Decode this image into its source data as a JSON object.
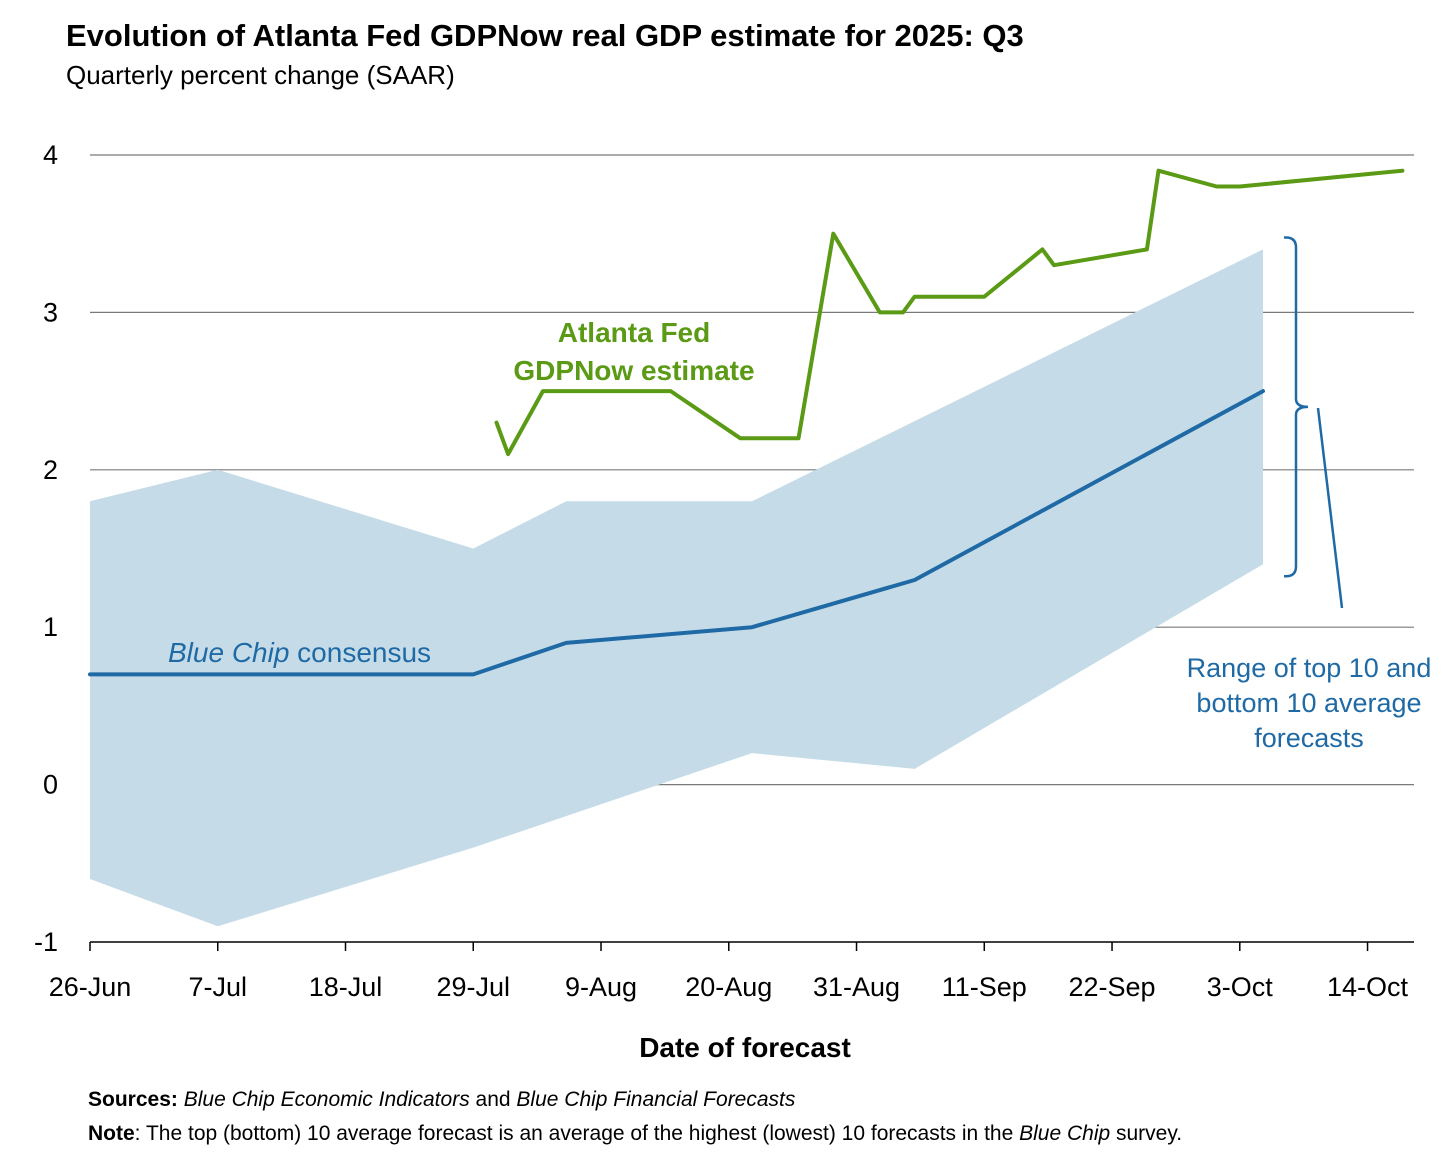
{
  "chart_data": {
    "type": "line",
    "title": "Evolution of Atlanta Fed GDPNow real GDP estimate for 2025: Q3",
    "subtitle": "Quarterly percent change (SAAR)",
    "xlabel": "Date of forecast",
    "ylabel": "",
    "x_start": "2025-06-26",
    "x_end": "2025-10-18",
    "x_ticks": [
      {
        "date": "2025-06-26",
        "label": "26-Jun"
      },
      {
        "date": "2025-07-07",
        "label": "7-Jul"
      },
      {
        "date": "2025-07-18",
        "label": "18-Jul"
      },
      {
        "date": "2025-07-29",
        "label": "29-Jul"
      },
      {
        "date": "2025-08-09",
        "label": "9-Aug"
      },
      {
        "date": "2025-08-20",
        "label": "20-Aug"
      },
      {
        "date": "2025-08-31",
        "label": "31-Aug"
      },
      {
        "date": "2025-09-11",
        "label": "11-Sep"
      },
      {
        "date": "2025-09-22",
        "label": "22-Sep"
      },
      {
        "date": "2025-10-03",
        "label": "3-Oct"
      },
      {
        "date": "2025-10-14",
        "label": "14-Oct"
      }
    ],
    "ylim": [
      -1,
      4
    ],
    "y_ticks": [
      -1,
      0,
      1,
      2,
      3,
      4
    ],
    "grid": true,
    "gdpnow": {
      "label_line1": "Atlanta Fed",
      "label_line2": "GDPNow estimate",
      "color": "#5a9a14",
      "points": [
        {
          "date": "2025-07-31",
          "value": 2.3
        },
        {
          "date": "2025-08-01",
          "value": 2.1
        },
        {
          "date": "2025-08-04",
          "value": 2.5
        },
        {
          "date": "2025-08-15",
          "value": 2.5
        },
        {
          "date": "2025-08-21",
          "value": 2.2
        },
        {
          "date": "2025-08-26",
          "value": 2.2
        },
        {
          "date": "2025-08-29",
          "value": 3.5
        },
        {
          "date": "2025-09-02",
          "value": 3.0
        },
        {
          "date": "2025-09-04",
          "value": 3.0
        },
        {
          "date": "2025-09-05",
          "value": 3.1
        },
        {
          "date": "2025-09-11",
          "value": 3.1
        },
        {
          "date": "2025-09-16",
          "value": 3.4
        },
        {
          "date": "2025-09-17",
          "value": 3.3
        },
        {
          "date": "2025-09-25",
          "value": 3.4
        },
        {
          "date": "2025-09-26",
          "value": 3.9
        },
        {
          "date": "2025-10-01",
          "value": 3.8
        },
        {
          "date": "2025-10-03",
          "value": 3.8
        },
        {
          "date": "2025-10-17",
          "value": 3.9
        }
      ]
    },
    "consensus": {
      "label_italic": "Blue Chip",
      "label_rest": " consensus",
      "color": "#1f6aa5",
      "points": [
        {
          "date": "2025-06-26",
          "value": 0.7
        },
        {
          "date": "2025-07-29",
          "value": 0.7
        },
        {
          "date": "2025-08-06",
          "value": 0.9
        },
        {
          "date": "2025-08-22",
          "value": 1.0
        },
        {
          "date": "2025-09-05",
          "value": 1.3
        },
        {
          "date": "2025-10-05",
          "value": 2.5
        }
      ]
    },
    "range_band": {
      "label_lines": [
        "Range of top 10 and",
        "bottom 10 average",
        "forecasts"
      ],
      "fill": "#c5dce8",
      "label_color": "#1f6aa5",
      "upper": [
        {
          "date": "2025-06-26",
          "value": 1.8
        },
        {
          "date": "2025-07-07",
          "value": 2.0
        },
        {
          "date": "2025-07-29",
          "value": 1.5
        },
        {
          "date": "2025-08-06",
          "value": 1.8
        },
        {
          "date": "2025-08-22",
          "value": 1.8
        },
        {
          "date": "2025-10-05",
          "value": 3.4
        }
      ],
      "lower": [
        {
          "date": "2025-06-26",
          "value": -0.6
        },
        {
          "date": "2025-07-07",
          "value": -0.9
        },
        {
          "date": "2025-07-29",
          "value": -0.4
        },
        {
          "date": "2025-08-22",
          "value": 0.2
        },
        {
          "date": "2025-09-05",
          "value": 0.1
        },
        {
          "date": "2025-10-05",
          "value": 1.4
        }
      ]
    },
    "footnotes": {
      "sources_label": "Sources:",
      "sources_italic_1": "Blue Chip Economic Indicators",
      "sources_mid": " and ",
      "sources_italic_2": "Blue Chip Financial Forecasts",
      "note_label": "Note",
      "note_before": ": The top (bottom) 10 average forecast is an average of the highest (lowest) 10 forecasts in the ",
      "note_italic": "Blue Chip",
      "note_after": " survey."
    }
  }
}
